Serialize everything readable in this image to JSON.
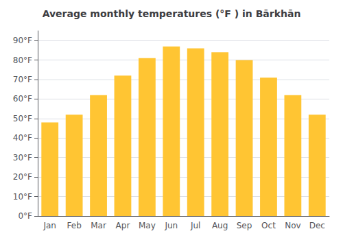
{
  "chart_data": {
    "type": "bar",
    "title": "Average monthly temperatures (°F ) in Bārkhān",
    "categories": [
      "Jan",
      "Feb",
      "Mar",
      "Apr",
      "May",
      "Jun",
      "Jul",
      "Aug",
      "Sep",
      "Oct",
      "Nov",
      "Dec"
    ],
    "values": [
      48,
      52,
      62,
      72,
      81,
      87,
      86,
      84,
      80,
      71,
      62,
      52
    ],
    "color": "#FFC533",
    "ylim": [
      0,
      95
    ],
    "yticks": [
      {
        "value": 0,
        "label": "0°F"
      },
      {
        "value": 10,
        "label": "10°F"
      },
      {
        "value": 20,
        "label": "20°F"
      },
      {
        "value": 30,
        "label": "30°F"
      },
      {
        "value": 40,
        "label": "40°F"
      },
      {
        "value": 50,
        "label": "50°F"
      },
      {
        "value": 60,
        "label": "60°F"
      },
      {
        "value": 70,
        "label": "70°F"
      },
      {
        "value": 80,
        "label": "80°F"
      },
      {
        "value": 90,
        "label": "90°F"
      }
    ],
    "grid": true
  }
}
